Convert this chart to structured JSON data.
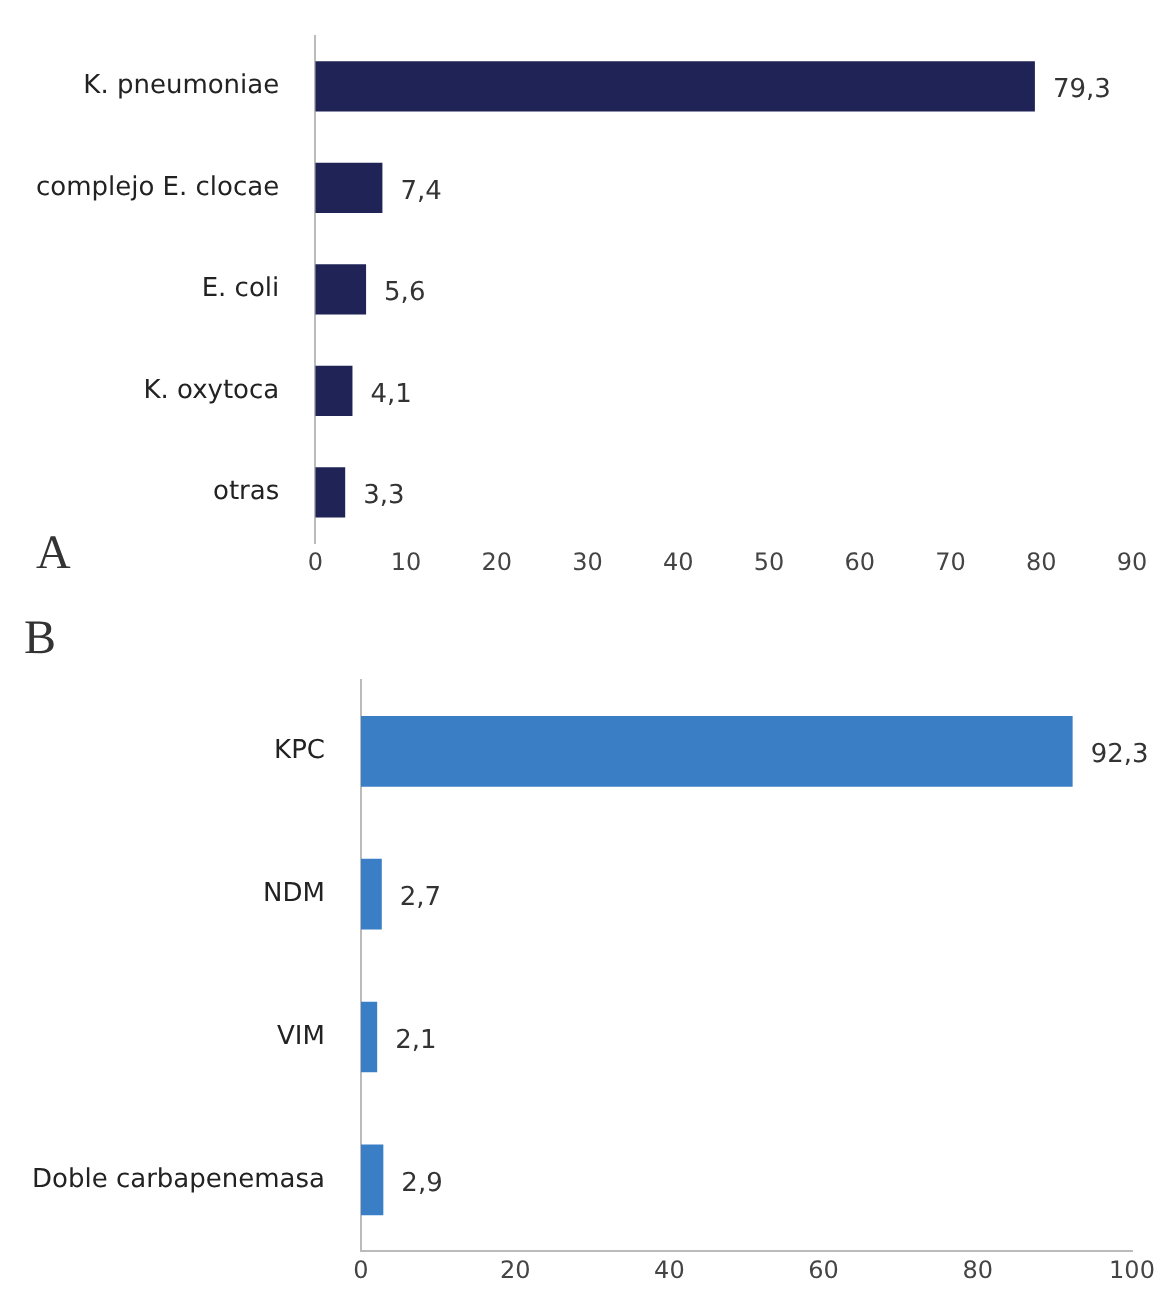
{
  "chart_data": [
    {
      "type": "bar",
      "orientation": "horizontal",
      "categories": [
        "K. pneumoniae",
        "complejo E. clocae",
        "E. coli",
        "K. oxytoca",
        "otras"
      ],
      "values": [
        79.3,
        7.4,
        5.6,
        4.1,
        3.3
      ],
      "color": "#1f2356",
      "xlim": [
        0,
        90
      ],
      "xticks": [
        0,
        10,
        20,
        30,
        40,
        50,
        60,
        70,
        80,
        90
      ],
      "data_labels": true,
      "grid": false,
      "legend": false,
      "value_labels": [
        "79,3",
        "7,4",
        "5,6",
        "4,1",
        "3,3"
      ],
      "annotations": [
        "A"
      ]
    },
    {
      "type": "bar",
      "orientation": "horizontal",
      "categories": [
        "KPC",
        "NDM",
        "VIM",
        "Doble carbapenemasa"
      ],
      "values": [
        92.3,
        2.7,
        2.1,
        2.9
      ],
      "color": "#3a7fc6",
      "xlim": [
        0,
        100
      ],
      "xticks": [
        0,
        20,
        40,
        60,
        80,
        100
      ],
      "data_labels": true,
      "grid": false,
      "legend": false,
      "value_labels": [
        "92,3",
        "2,7",
        "2,1",
        "2,9"
      ],
      "annotations": [
        "B"
      ]
    }
  ]
}
